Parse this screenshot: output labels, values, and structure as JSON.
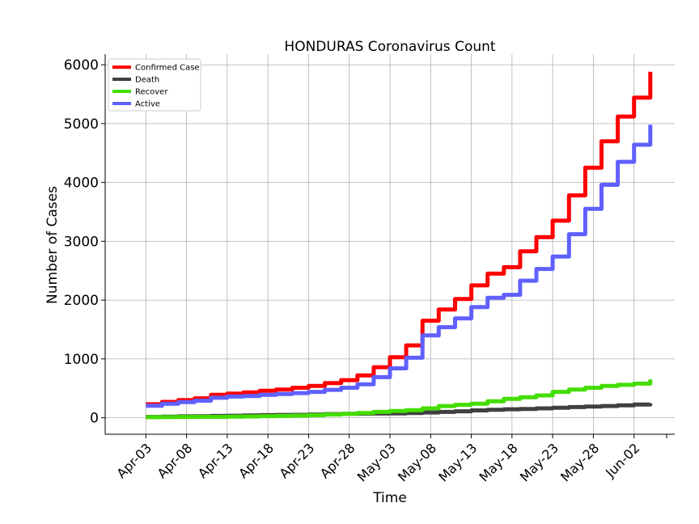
{
  "chart_data": {
    "type": "line",
    "title": "HONDURAS Coronavirus Count",
    "xlabel": "Time",
    "ylabel": "Number of Cases",
    "ylim": [
      -280,
      6180
    ],
    "xlim": [
      "2020-03-29",
      "2020-06-07"
    ],
    "yticks": [
      0,
      1000,
      2000,
      3000,
      4000,
      5000,
      6000
    ],
    "xticks": [
      "Apr-03",
      "Apr-08",
      "Apr-13",
      "Apr-18",
      "Apr-23",
      "Apr-28",
      "May-03",
      "May-08",
      "May-13",
      "May-18",
      "May-23",
      "May-28",
      "Jun-02"
    ],
    "xtick_dates": [
      "2020-04-03",
      "2020-04-08",
      "2020-04-13",
      "2020-04-18",
      "2020-04-23",
      "2020-04-28",
      "2020-05-03",
      "2020-05-08",
      "2020-05-13",
      "2020-05-18",
      "2020-05-23",
      "2020-05-28",
      "2020-06-02"
    ],
    "grid": true,
    "legend_position": "top-left",
    "x": [
      "2020-04-03",
      "2020-04-05",
      "2020-04-07",
      "2020-04-09",
      "2020-04-11",
      "2020-04-13",
      "2020-04-15",
      "2020-04-17",
      "2020-04-19",
      "2020-04-21",
      "2020-04-23",
      "2020-04-25",
      "2020-04-27",
      "2020-04-29",
      "2020-05-01",
      "2020-05-03",
      "2020-05-05",
      "2020-05-07",
      "2020-05-09",
      "2020-05-11",
      "2020-05-13",
      "2020-05-15",
      "2020-05-17",
      "2020-05-19",
      "2020-05-21",
      "2020-05-23",
      "2020-05-25",
      "2020-05-27",
      "2020-05-29",
      "2020-05-31",
      "2020-06-02",
      "2020-06-04"
    ],
    "series": [
      {
        "name": "Confirmed Case",
        "color": "#ff0000",
        "values": [
          230,
          270,
          300,
          330,
          390,
          410,
          430,
          460,
          480,
          510,
          540,
          590,
          640,
          720,
          860,
          1030,
          1230,
          1650,
          1840,
          2020,
          2250,
          2450,
          2560,
          2830,
          3070,
          3350,
          3780,
          4250,
          4700,
          5120,
          5440,
          5880
        ]
      },
      {
        "name": "Death",
        "color": "#404040",
        "values": [
          14,
          20,
          24,
          26,
          30,
          35,
          40,
          45,
          48,
          50,
          55,
          62,
          66,
          70,
          72,
          75,
          80,
          90,
          100,
          110,
          125,
          135,
          145,
          150,
          160,
          170,
          182,
          190,
          200,
          210,
          225,
          245
        ]
      },
      {
        "name": "Recover",
        "color": "#44dd00",
        "values": [
          10,
          12,
          14,
          15,
          16,
          18,
          22,
          28,
          32,
          38,
          45,
          55,
          65,
          80,
          100,
          115,
          130,
          160,
          200,
          220,
          240,
          280,
          320,
          350,
          380,
          440,
          480,
          510,
          540,
          560,
          580,
          650
        ]
      },
      {
        "name": "Active",
        "color": "#6060ff",
        "values": [
          205,
          240,
          265,
          290,
          340,
          360,
          370,
          390,
          405,
          420,
          440,
          475,
          510,
          570,
          690,
          840,
          1020,
          1400,
          1540,
          1690,
          1880,
          2040,
          2090,
          2330,
          2530,
          2740,
          3120,
          3550,
          3960,
          4350,
          4640,
          4980
        ]
      }
    ]
  }
}
